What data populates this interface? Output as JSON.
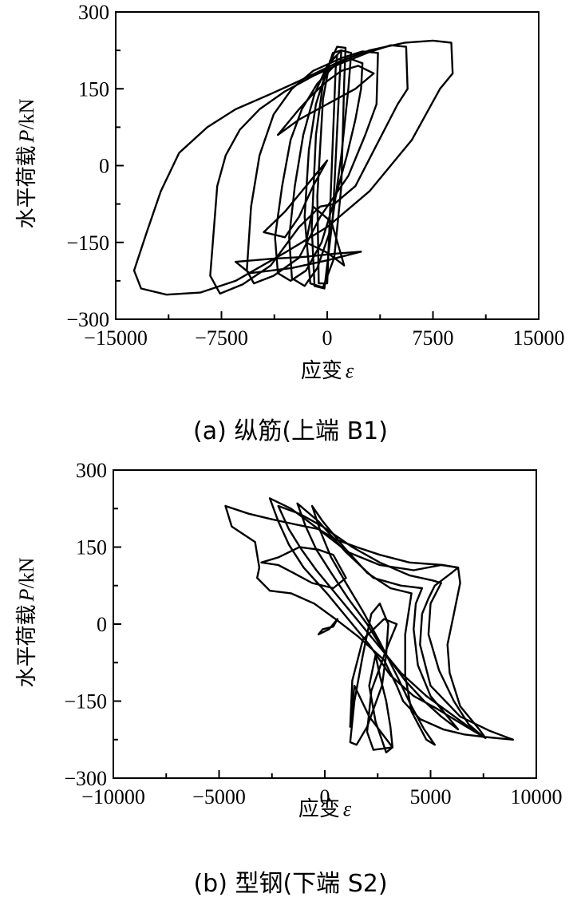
{
  "chart_data": [
    {
      "type": "line",
      "caption": "(a)  纵筋(上端 B1)",
      "ylabel_cn": "水平荷载",
      "ylabel_sym": "P",
      "ylabel_unit": "/kN",
      "xlabel_cn": "应变",
      "xlabel_sym": "ε",
      "xlim": [
        -15000,
        15000
      ],
      "ylim": [
        -300,
        300
      ],
      "xticks": [
        -15000,
        -7500,
        0,
        7500,
        15000
      ],
      "xtick_labels": [
        "−15000",
        "−7500",
        "0",
        "7500",
        "15000"
      ],
      "yticks": [
        -300,
        -150,
        0,
        150,
        300
      ],
      "ytick_labels": [
        "−300",
        "−150",
        "0",
        "150",
        "300"
      ],
      "series": [
        {
          "x": [
            8900,
            8800,
            7500,
            5500,
            3000,
            1000,
            -500,
            -2000,
            -4000,
            -6500,
            -8500,
            -10500,
            -11800,
            -12800,
            -13700,
            -13200,
            -11400,
            -9000,
            -6500,
            -3000,
            0,
            3000,
            6000,
            8000,
            8900
          ],
          "y": [
            180,
            240,
            244,
            240,
            225,
            205,
            185,
            165,
            140,
            110,
            75,
            25,
            -50,
            -130,
            -205,
            -240,
            -252,
            -248,
            -225,
            -170,
            -120,
            -50,
            50,
            150,
            180
          ]
        },
        {
          "x": [
            5700,
            5600,
            4500,
            3000,
            1000,
            -1000,
            -3000,
            -4800,
            -6200,
            -7200,
            -7800,
            -8300,
            -7600,
            -6000,
            -4000,
            -2000,
            -500,
            500,
            2000,
            3500,
            5000,
            5700
          ],
          "y": [
            150,
            232,
            235,
            222,
            200,
            175,
            145,
            110,
            70,
            20,
            -40,
            -215,
            -250,
            -232,
            -195,
            -120,
            -80,
            -75,
            -40,
            40,
            120,
            150
          ]
        },
        {
          "x": [
            3500,
            3600,
            2500,
            1000,
            -1000,
            -2500,
            -3800,
            -4800,
            -5400,
            -5700,
            -5200,
            -3800,
            -2000,
            -500,
            500,
            1500,
            2700,
            3500
          ],
          "y": [
            120,
            220,
            223,
            210,
            185,
            150,
            100,
            20,
            -80,
            -205,
            -230,
            -215,
            -180,
            -100,
            -60,
            -20,
            60,
            120
          ]
        },
        {
          "x": [
            2400,
            2500,
            1500,
            500,
            -700,
            -1800,
            -2600,
            -3200,
            -3700,
            -3500,
            -2600,
            -1500,
            -400,
            600,
            1400,
            2000,
            2400
          ],
          "y": [
            150,
            200,
            210,
            195,
            160,
            110,
            50,
            -40,
            -140,
            -210,
            -225,
            -205,
            -150,
            -60,
            20,
            90,
            150
          ]
        },
        {
          "x": [
            1500,
            1700,
            1000,
            0,
            -900,
            -1700,
            -2300,
            -2700,
            -2500,
            -1600,
            -700,
            300,
            1000,
            1500
          ],
          "y": [
            150,
            220,
            225,
            195,
            140,
            60,
            -40,
            -140,
            -220,
            -235,
            -200,
            -120,
            20,
            150
          ]
        },
        {
          "x": [
            1200,
            1300,
            700,
            0,
            -800,
            -1300,
            -1600,
            -1200,
            -300,
            500,
            1000,
            1200
          ],
          "y": [
            160,
            230,
            232,
            190,
            120,
            30,
            -100,
            -230,
            -238,
            -180,
            -40,
            160
          ]
        },
        {
          "x": [
            900,
            1000,
            400,
            -300,
            -800,
            -1100,
            -900,
            -200,
            400,
            900
          ],
          "y": [
            180,
            225,
            220,
            160,
            60,
            -120,
            -235,
            -240,
            -100,
            180
          ]
        },
        {
          "x": [
            600,
            700,
            200,
            -300,
            -700,
            -600,
            0,
            600
          ],
          "y": [
            190,
            215,
            205,
            130,
            -60,
            -230,
            -230,
            190
          ]
        },
        {
          "x": [
            -6500,
            -4000,
            -1500,
            500,
            2400,
            0,
            -2500,
            -5500,
            -6500
          ],
          "y": [
            -188,
            -182,
            -178,
            -172,
            -168,
            -185,
            -200,
            -210,
            -188
          ]
        },
        {
          "x": [
            -3500,
            -2000,
            -1000,
            0,
            1000,
            2200,
            3300,
            2000,
            0,
            -2000,
            -3500
          ],
          "y": [
            60,
            110,
            140,
            165,
            185,
            195,
            180,
            150,
            120,
            90,
            60
          ]
        },
        {
          "x": [
            -4500,
            -3000,
            -2000,
            -1000,
            0,
            -1500,
            -3000,
            -4500
          ],
          "y": [
            -130,
            -140,
            -100,
            -40,
            10,
            -40,
            -90,
            -130
          ]
        },
        {
          "x": [
            -1500,
            0,
            1200,
            300,
            -1000,
            -1500
          ],
          "y": [
            -150,
            -170,
            -195,
            -110,
            -80,
            -150
          ]
        }
      ]
    },
    {
      "type": "line",
      "caption": "(b)  型钢(下端 S2)",
      "ylabel_cn": "水平荷载",
      "ylabel_sym": "P",
      "ylabel_unit": "/kN",
      "xlabel_cn": "应变",
      "xlabel_sym": "ε",
      "xlim": [
        -10000,
        10000
      ],
      "ylim": [
        -300,
        300
      ],
      "xticks": [
        -10000,
        -5000,
        0,
        5000,
        10000
      ],
      "xtick_labels": [
        "−10000",
        "−5000",
        "0",
        "5000",
        "10000"
      ],
      "yticks": [
        -300,
        -150,
        0,
        150,
        300
      ],
      "ytick_labels": [
        "−300",
        "−150",
        "0",
        "150",
        "300"
      ],
      "series": [
        {
          "x": [
            -4700,
            -4400,
            -3300,
            -3100,
            -3200,
            -2600,
            -1600,
            -500,
            500,
            1600,
            2800,
            3400,
            3700,
            4500,
            5600,
            6600,
            7600,
            8900,
            7800,
            6400,
            5000,
            4500,
            4600,
            4900,
            5200,
            6000,
            6300,
            5600,
            4000,
            2600,
            1500,
            500,
            -300,
            -1500,
            -2600,
            -3600,
            -4700
          ],
          "y": [
            230,
            190,
            160,
            110,
            90,
            65,
            60,
            40,
            10,
            -25,
            -70,
            -120,
            -150,
            -185,
            -205,
            -215,
            -220,
            -225,
            -208,
            -180,
            -120,
            -40,
            20,
            50,
            75,
            100,
            110,
            115,
            120,
            135,
            150,
            165,
            185,
            195,
            205,
            215,
            230
          ]
        },
        {
          "x": [
            -2600,
            -2200,
            -1700,
            -1000,
            100,
            1100,
            2100,
            3100,
            4200,
            5300,
            6500,
            7600,
            7300,
            6400,
            5900,
            5800,
            6100,
            6400,
            6300,
            5500,
            4200,
            2600,
            1100,
            -300,
            -1600,
            -2600
          ],
          "y": [
            245,
            200,
            155,
            110,
            60,
            10,
            -40,
            -100,
            -140,
            -165,
            -195,
            -222,
            -205,
            -160,
            -95,
            -40,
            20,
            80,
            110,
            115,
            105,
            115,
            140,
            185,
            225,
            245
          ]
        },
        {
          "x": [
            -2200,
            -1700,
            -1100,
            -400,
            600,
            1500,
            2600,
            3600,
            4800,
            5800,
            6800,
            7500,
            6800,
            6100,
            5400,
            4900,
            5000,
            5500,
            5100,
            4000,
            2600,
            1300,
            -100,
            -1200,
            -2200
          ],
          "y": [
            230,
            185,
            145,
            105,
            55,
            10,
            -45,
            -95,
            -140,
            -170,
            -200,
            -220,
            -195,
            -150,
            -90,
            -20,
            40,
            80,
            85,
            95,
            120,
            150,
            190,
            215,
            230
          ]
        },
        {
          "x": [
            -1300,
            -900,
            -400,
            300,
            1100,
            2000,
            2900,
            3800,
            4700,
            5500,
            6300,
            5800,
            5000,
            4400,
            4200,
            4300,
            4600,
            3600,
            2300,
            1000,
            -300,
            -1300
          ],
          "y": [
            235,
            190,
            145,
            100,
            50,
            0,
            -60,
            -110,
            -150,
            -180,
            -205,
            -180,
            -140,
            -80,
            -10,
            40,
            70,
            75,
            90,
            140,
            200,
            235
          ]
        },
        {
          "x": [
            -600,
            -200,
            300,
            1000,
            1800,
            2600,
            3400,
            4100,
            4700,
            5200,
            4800,
            4100,
            3800,
            3800,
            4100,
            3100,
            2000,
            900,
            -100,
            -600
          ],
          "y": [
            230,
            180,
            130,
            80,
            25,
            -35,
            -100,
            -160,
            -205,
            -235,
            -225,
            -170,
            -100,
            -20,
            60,
            70,
            100,
            150,
            200,
            230
          ]
        },
        {
          "x": [
            1200,
            1300,
            1800,
            2800,
            3400,
            2900,
            2200,
            2000,
            2300,
            3200,
            2100,
            1400,
            1200
          ],
          "y": [
            -200,
            -110,
            -30,
            10,
            0,
            -50,
            -130,
            -210,
            -245,
            -240,
            -180,
            -120,
            -200
          ]
        },
        {
          "x": [
            2700,
            2900,
            3000,
            2600,
            2200,
            1800,
            1400,
            1200,
            1500,
            2000,
            2700
          ],
          "y": [
            -120,
            -60,
            0,
            40,
            20,
            -60,
            -150,
            -230,
            -235,
            -200,
            -120
          ]
        },
        {
          "x": [
            -300,
            200,
            600,
            400,
            -100,
            -300
          ],
          "y": [
            -20,
            -10,
            10,
            -5,
            -10,
            -20
          ]
        },
        {
          "x": [
            -3000,
            -2200,
            -1200,
            -300,
            400,
            1000,
            400,
            -600,
            -1500,
            -2200,
            -3000
          ],
          "y": [
            120,
            130,
            150,
            145,
            135,
            90,
            70,
            80,
            100,
            115,
            120
          ]
        },
        {
          "x": [
            3200,
            3100,
            2900,
            2600,
            2400,
            2100,
            2400,
            2900,
            3200
          ],
          "y": [
            -240,
            -200,
            -150,
            -100,
            -60,
            -120,
            -190,
            -250,
            -240
          ]
        }
      ]
    }
  ]
}
